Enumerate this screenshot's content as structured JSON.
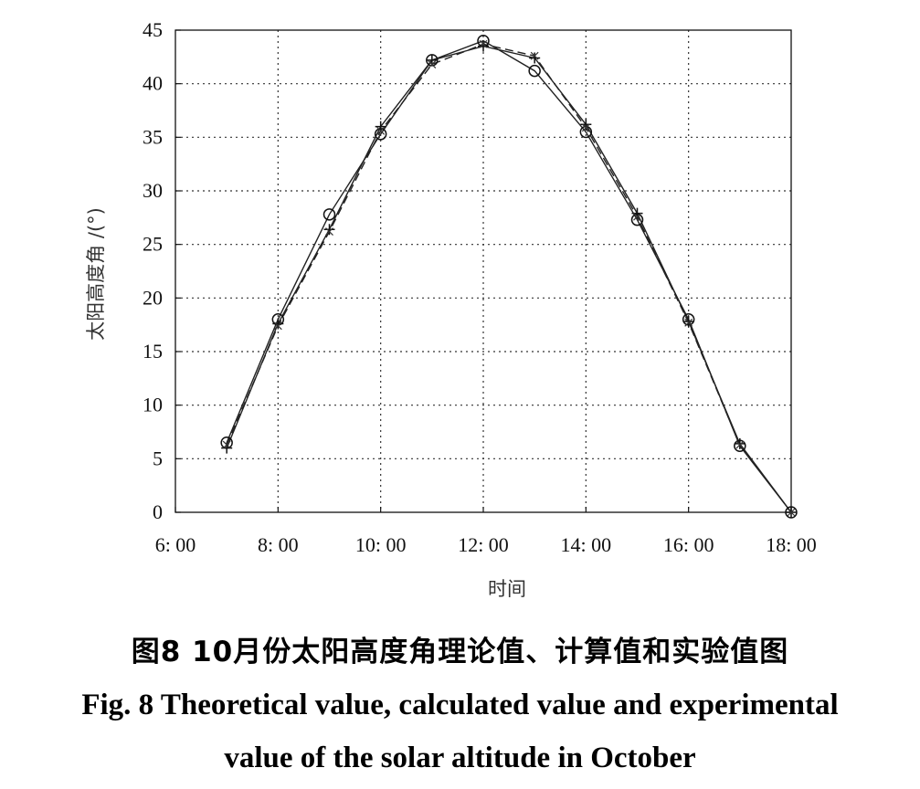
{
  "chart_data": {
    "type": "line",
    "xlabel": "时间",
    "ylabel": "太阳高度角 /(°)",
    "x_tick_labels": [
      "6: 00",
      "8: 00",
      "10: 00",
      "12: 00",
      "14: 00",
      "16: 00",
      "18: 00"
    ],
    "x_ticks": [
      6,
      8,
      10,
      12,
      14,
      16,
      18
    ],
    "xlim": [
      6,
      18
    ],
    "y_ticks": [
      0,
      5,
      10,
      15,
      20,
      25,
      30,
      35,
      40,
      45
    ],
    "ylim": [
      0,
      45
    ],
    "grid": true,
    "x": [
      7,
      8,
      9,
      10,
      11,
      12,
      13,
      14,
      15,
      16,
      17,
      18
    ],
    "series": [
      {
        "marker": "circle",
        "line_style": "solid",
        "values": [
          6.5,
          18.0,
          27.8,
          35.3,
          42.2,
          44.0,
          41.2,
          35.5,
          27.3,
          18.0,
          6.2,
          0.0
        ]
      },
      {
        "marker": "plus",
        "line_style": "solid",
        "values": [
          6.0,
          17.6,
          26.4,
          36.0,
          42.2,
          43.5,
          42.4,
          36.2,
          27.9,
          17.8,
          6.4,
          0.0
        ]
      },
      {
        "marker": "x",
        "line_style": "dashed",
        "values": [
          6.3,
          17.4,
          26.2,
          35.6,
          41.8,
          43.7,
          42.6,
          35.9,
          27.6,
          17.7,
          6.3,
          0.0
        ]
      }
    ]
  },
  "caption": {
    "cn": "图8  10月份太阳高度角理论值、计算值和实验值图",
    "en_line1": "Fig. 8  Theoretical value, calculated value and experimental",
    "en_line2": "value of the solar altitude in October"
  }
}
